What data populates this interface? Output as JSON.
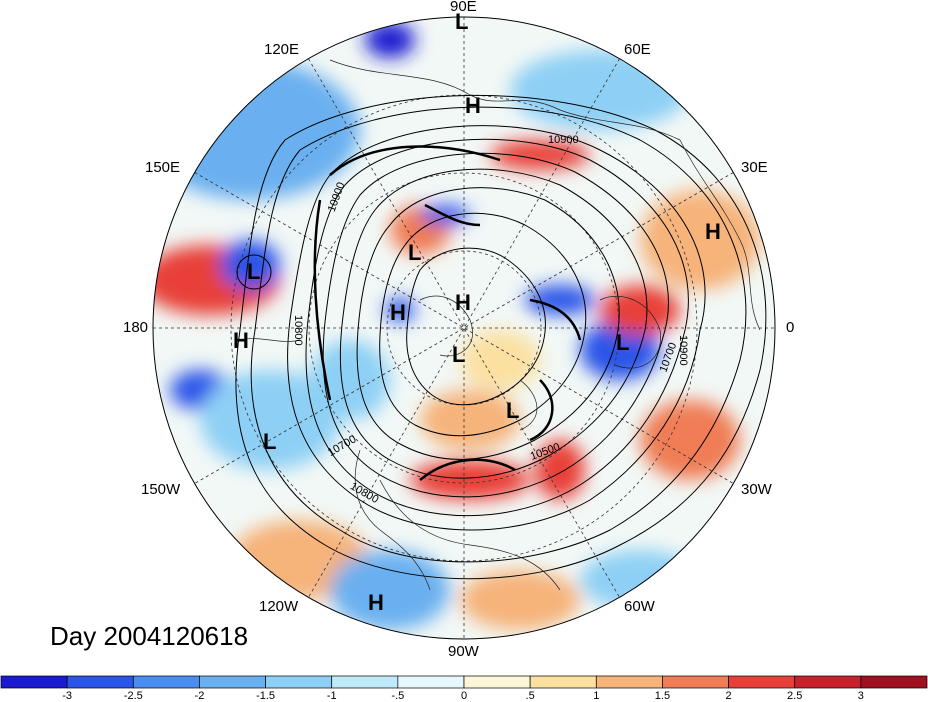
{
  "map": {
    "date_label": "Day 2004120618",
    "longitude_labels": {
      "top": "90E",
      "right": "0",
      "bottom": "90W",
      "left": "180",
      "upper_right_1": "60E",
      "upper_right_2": "30E",
      "lower_right_1": "30W",
      "lower_right_2": "60W",
      "lower_left_1": "120W",
      "lower_left_2": "150W",
      "upper_left_1": "150E",
      "upper_left_2": "120E"
    },
    "pressure_centers": [
      {
        "id": "h1",
        "label": "H"
      },
      {
        "id": "h2",
        "label": "H"
      },
      {
        "id": "h3",
        "label": "H"
      },
      {
        "id": "h4",
        "label": "H"
      },
      {
        "id": "h5",
        "label": "H"
      },
      {
        "id": "h6",
        "label": "H"
      },
      {
        "id": "l1",
        "label": "L"
      },
      {
        "id": "l2",
        "label": "L"
      },
      {
        "id": "l3",
        "label": "L"
      },
      {
        "id": "l4",
        "label": "L"
      },
      {
        "id": "l5",
        "label": "L"
      },
      {
        "id": "l6",
        "label": "L"
      },
      {
        "id": "l7",
        "label": "L"
      }
    ],
    "contour_labels": [
      "10900",
      "10900",
      "10800",
      "10700",
      "10500",
      "10800",
      "10700",
      "10900"
    ]
  },
  "colorbar": {
    "ticks": [
      "-3",
      "-2.5",
      "-2",
      "-1.5",
      "-1",
      "-.5",
      "0",
      ".5",
      "1",
      "1.5",
      "2",
      "2.5",
      "3"
    ],
    "colors": [
      "#1a1ad0",
      "#2a55e8",
      "#4a8cf0",
      "#6ab0f0",
      "#8ed0f5",
      "#bfeaf8",
      "#e6f8fb",
      "#fbf6d8",
      "#fbe0a0",
      "#f6b37a",
      "#f07d55",
      "#e84038",
      "#c8202c",
      "#a01020"
    ]
  }
}
